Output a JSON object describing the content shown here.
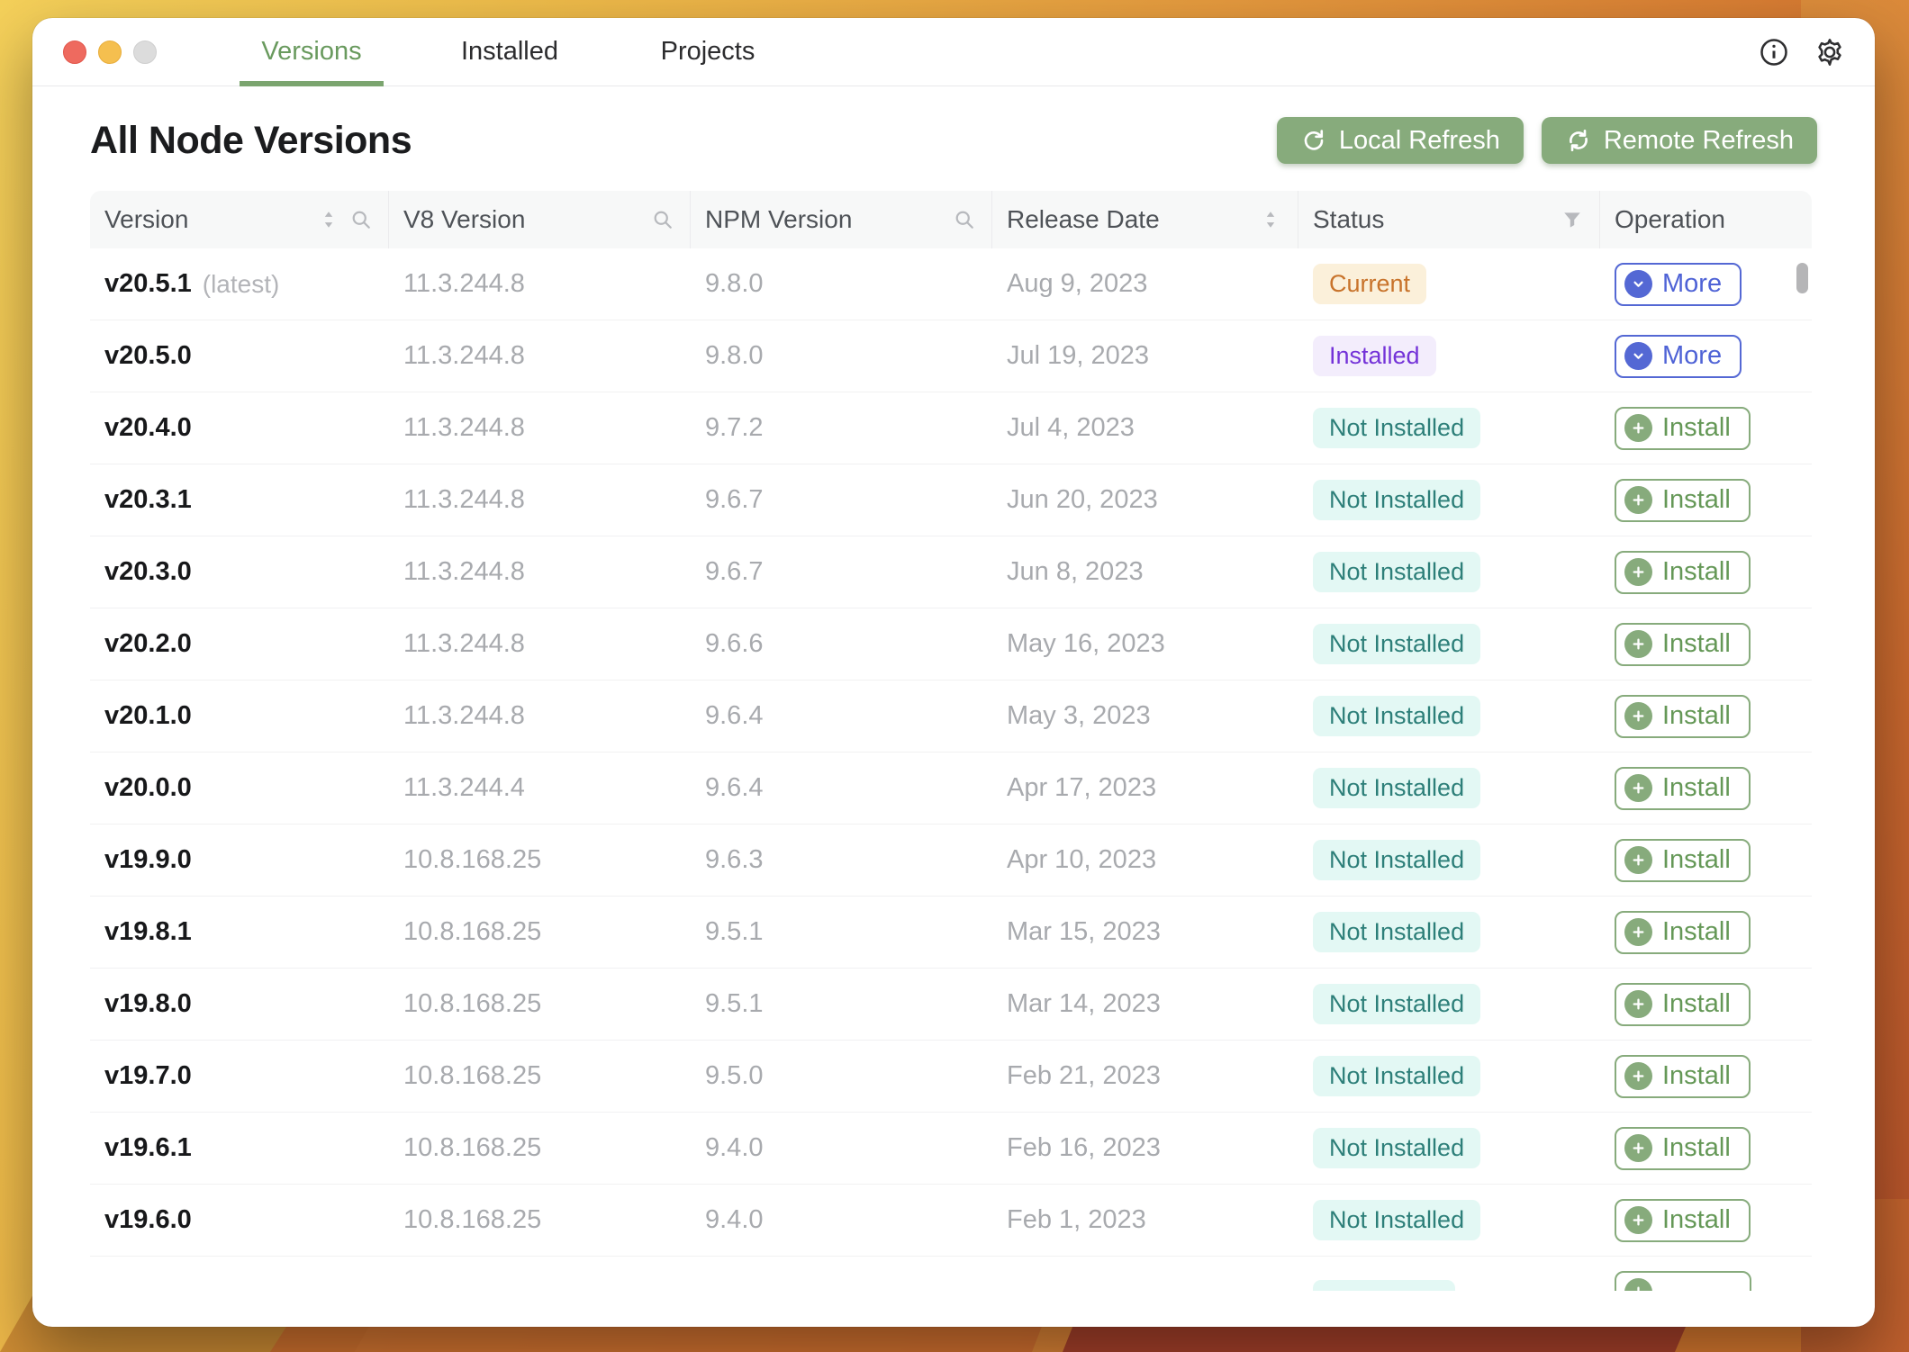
{
  "titlebar": {
    "tabs": [
      {
        "label": "Versions",
        "active": true
      },
      {
        "label": "Installed",
        "active": false
      },
      {
        "label": "Projects",
        "active": false
      }
    ],
    "icons": [
      "info-icon",
      "gear-icon"
    ]
  },
  "header": {
    "title": "All Node Versions",
    "local_refresh_label": "Local Refresh",
    "remote_refresh_label": "Remote Refresh"
  },
  "table": {
    "columns": [
      {
        "label": "Version",
        "icons": [
          "sort",
          "search"
        ]
      },
      {
        "label": "V8 Version",
        "icons": [
          "search"
        ]
      },
      {
        "label": "NPM Version",
        "icons": [
          "search"
        ]
      },
      {
        "label": "Release Date",
        "icons": [
          "sort"
        ]
      },
      {
        "label": "Status",
        "icons": [
          "filter"
        ]
      },
      {
        "label": "Operation",
        "icons": []
      }
    ],
    "rows": [
      {
        "version": "v20.5.1",
        "tag": "(latest)",
        "v8": "11.3.244.8",
        "npm": "9.8.0",
        "date": "Aug 9, 2023",
        "status": "Current",
        "status_type": "current",
        "op": "More",
        "op_type": "more"
      },
      {
        "version": "v20.5.0",
        "tag": "",
        "v8": "11.3.244.8",
        "npm": "9.8.0",
        "date": "Jul 19, 2023",
        "status": "Installed",
        "status_type": "installed",
        "op": "More",
        "op_type": "more"
      },
      {
        "version": "v20.4.0",
        "tag": "",
        "v8": "11.3.244.8",
        "npm": "9.7.2",
        "date": "Jul 4, 2023",
        "status": "Not Installed",
        "status_type": "not-installed",
        "op": "Install",
        "op_type": "install"
      },
      {
        "version": "v20.3.1",
        "tag": "",
        "v8": "11.3.244.8",
        "npm": "9.6.7",
        "date": "Jun 20, 2023",
        "status": "Not Installed",
        "status_type": "not-installed",
        "op": "Install",
        "op_type": "install"
      },
      {
        "version": "v20.3.0",
        "tag": "",
        "v8": "11.3.244.8",
        "npm": "9.6.7",
        "date": "Jun 8, 2023",
        "status": "Not Installed",
        "status_type": "not-installed",
        "op": "Install",
        "op_type": "install"
      },
      {
        "version": "v20.2.0",
        "tag": "",
        "v8": "11.3.244.8",
        "npm": "9.6.6",
        "date": "May 16, 2023",
        "status": "Not Installed",
        "status_type": "not-installed",
        "op": "Install",
        "op_type": "install"
      },
      {
        "version": "v20.1.0",
        "tag": "",
        "v8": "11.3.244.8",
        "npm": "9.6.4",
        "date": "May 3, 2023",
        "status": "Not Installed",
        "status_type": "not-installed",
        "op": "Install",
        "op_type": "install"
      },
      {
        "version": "v20.0.0",
        "tag": "",
        "v8": "11.3.244.4",
        "npm": "9.6.4",
        "date": "Apr 17, 2023",
        "status": "Not Installed",
        "status_type": "not-installed",
        "op": "Install",
        "op_type": "install"
      },
      {
        "version": "v19.9.0",
        "tag": "",
        "v8": "10.8.168.25",
        "npm": "9.6.3",
        "date": "Apr 10, 2023",
        "status": "Not Installed",
        "status_type": "not-installed",
        "op": "Install",
        "op_type": "install"
      },
      {
        "version": "v19.8.1",
        "tag": "",
        "v8": "10.8.168.25",
        "npm": "9.5.1",
        "date": "Mar 15, 2023",
        "status": "Not Installed",
        "status_type": "not-installed",
        "op": "Install",
        "op_type": "install"
      },
      {
        "version": "v19.8.0",
        "tag": "",
        "v8": "10.8.168.25",
        "npm": "9.5.1",
        "date": "Mar 14, 2023",
        "status": "Not Installed",
        "status_type": "not-installed",
        "op": "Install",
        "op_type": "install"
      },
      {
        "version": "v19.7.0",
        "tag": "",
        "v8": "10.8.168.25",
        "npm": "9.5.0",
        "date": "Feb 21, 2023",
        "status": "Not Installed",
        "status_type": "not-installed",
        "op": "Install",
        "op_type": "install"
      },
      {
        "version": "v19.6.1",
        "tag": "",
        "v8": "10.8.168.25",
        "npm": "9.4.0",
        "date": "Feb 16, 2023",
        "status": "Not Installed",
        "status_type": "not-installed",
        "op": "Install",
        "op_type": "install"
      },
      {
        "version": "v19.6.0",
        "tag": "",
        "v8": "10.8.168.25",
        "npm": "9.4.0",
        "date": "Feb 1, 2023",
        "status": "Not Installed",
        "status_type": "not-installed",
        "op": "Install",
        "op_type": "install"
      },
      {
        "version": "",
        "tag": "",
        "v8": "",
        "npm": "",
        "date": "",
        "status": "",
        "status_type": "not-installed",
        "op": "",
        "op_type": "install",
        "partial": true
      }
    ]
  },
  "colors": {
    "accent_green": "#87ab7c",
    "accent_blue": "#5468d4",
    "tab_active_green": "#699a5e",
    "badge_current_bg": "#fbf0da",
    "badge_current_text": "#c8732b",
    "badge_installed_bg": "#f3edfc",
    "badge_installed_text": "#7433d8",
    "badge_not_installed_bg": "#e3f8f4",
    "badge_not_installed_text": "#2d7f79",
    "traffic_red": "#ee6a5f",
    "traffic_yellow": "#f5bf4f",
    "traffic_gray": "#dcdcdc"
  }
}
